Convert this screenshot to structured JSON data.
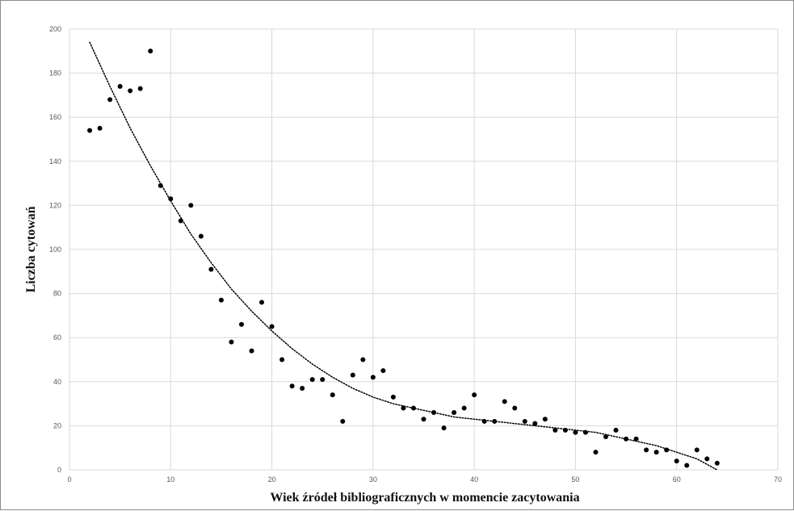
{
  "chart_data": {
    "type": "scatter",
    "title": "",
    "xlabel": "Wiek źródeł bibliograficznych w momencie zacytowania",
    "ylabel": "Liczba cytowań",
    "xlim": [
      0,
      70
    ],
    "ylim": [
      0,
      200
    ],
    "x_ticks": [
      0,
      10,
      20,
      30,
      40,
      50,
      60,
      70
    ],
    "y_ticks": [
      0,
      20,
      40,
      60,
      80,
      100,
      120,
      140,
      160,
      180,
      200
    ],
    "grid": true,
    "legend": "none",
    "trendline": "dotted polynomial",
    "colors": {
      "points": "#000000",
      "trendline": "#000000",
      "grid": "#d9d9d9"
    },
    "x": [
      2,
      3,
      4,
      5,
      6,
      7,
      8,
      9,
      10,
      11,
      12,
      13,
      14,
      15,
      16,
      17,
      18,
      19,
      20,
      21,
      22,
      23,
      24,
      25,
      26,
      27,
      28,
      29,
      30,
      31,
      32,
      33,
      34,
      35,
      36,
      37,
      38,
      39,
      40,
      41,
      42,
      43,
      44,
      45,
      46,
      47,
      48,
      49,
      50,
      51,
      52,
      53,
      54,
      55,
      56,
      57,
      58,
      59,
      60,
      61,
      62,
      63,
      64
    ],
    "y": [
      154,
      155,
      168,
      174,
      172,
      173,
      190,
      129,
      123,
      113,
      120,
      106,
      91,
      77,
      58,
      66,
      54,
      76,
      65,
      50,
      38,
      37,
      41,
      41,
      34,
      22,
      43,
      50,
      42,
      45,
      33,
      28,
      28,
      23,
      26,
      19,
      26,
      28,
      34,
      22,
      22,
      31,
      28,
      22,
      21,
      23,
      18,
      18,
      17,
      17,
      8,
      15,
      18,
      14,
      14,
      9,
      8,
      9,
      4,
      2,
      9,
      5,
      3
    ],
    "trend_x": [
      2,
      4,
      6,
      8,
      10,
      12,
      14,
      16,
      18,
      20,
      22,
      24,
      26,
      28,
      30,
      32,
      34,
      36,
      38,
      40,
      42,
      44,
      46,
      48,
      50,
      52,
      54,
      56,
      58,
      60,
      62,
      64
    ],
    "trend_y": [
      194,
      174,
      155,
      138,
      122,
      107,
      94,
      82,
      72,
      63,
      55,
      48,
      42,
      37,
      33,
      30,
      28,
      26,
      24,
      23,
      22,
      21,
      20,
      19,
      18,
      17,
      15,
      13,
      11,
      8,
      5,
      0
    ]
  }
}
